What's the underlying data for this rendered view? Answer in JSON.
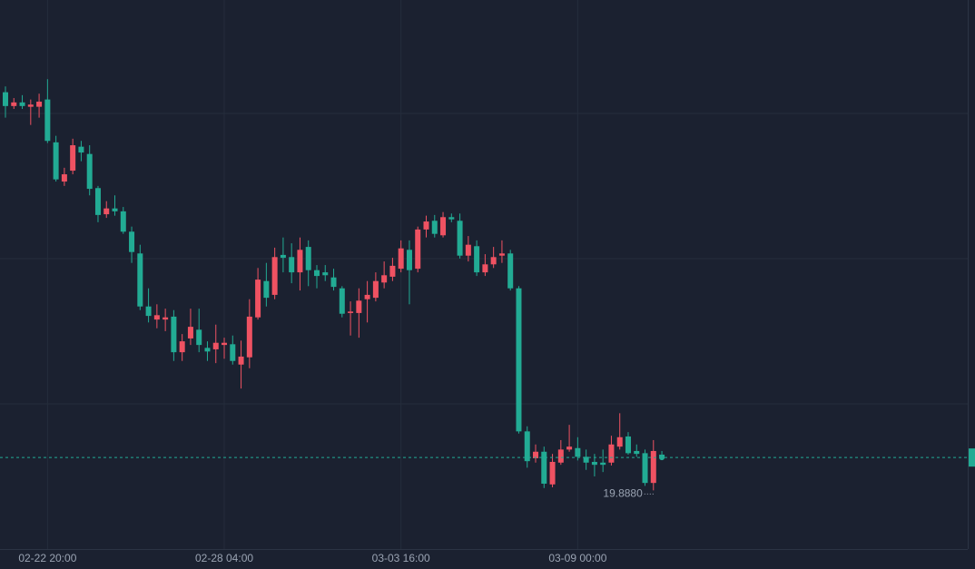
{
  "chart_data": {
    "type": "candlestick",
    "categories": [
      null,
      null,
      null,
      null,
      null,
      "02-22 20:00",
      null,
      null,
      null,
      null,
      null,
      null,
      null,
      null,
      null,
      null,
      null,
      null,
      null,
      null,
      null,
      null,
      null,
      null,
      null,
      null,
      "02-28 04:00",
      null,
      null,
      null,
      null,
      null,
      null,
      null,
      null,
      null,
      null,
      null,
      null,
      null,
      null,
      null,
      null,
      null,
      null,
      null,
      null,
      "03-03 16:00",
      null,
      null,
      null,
      null,
      null,
      null,
      null,
      null,
      null,
      null,
      null,
      null,
      null,
      null,
      null,
      null,
      null,
      null,
      null,
      null,
      "03-09 00:00",
      null,
      null,
      null,
      null,
      null,
      null,
      null,
      null,
      null,
      null
    ],
    "open": [
      25.37,
      25.18,
      25.23,
      25.17,
      25.17,
      25.27,
      24.68,
      24.14,
      24.29,
      24.62,
      24.52,
      24.05,
      23.69,
      23.77,
      23.73,
      23.45,
      23.15,
      22.42,
      22.24,
      22.24,
      22.28,
      21.79,
      21.98,
      22.1,
      21.85,
      21.83,
      21.89,
      21.9,
      21.62,
      21.72,
      22.27,
      22.77,
      22.58,
      23.13,
      23.1,
      22.89,
      23.24,
      22.92,
      22.89,
      22.82,
      22.67,
      22.33,
      22.33,
      22.52,
      22.54,
      22.75,
      22.83,
      22.94,
      23.2,
      22.94,
      23.48,
      23.6,
      23.4,
      23.65,
      23.6,
      23.12,
      23.25,
      22.89,
      23.0,
      23.12,
      23.15,
      22.67,
      20.7,
      20.33,
      20.42,
      19.97,
      20.27,
      20.45,
      20.47,
      20.35,
      20.28,
      20.27,
      20.27,
      20.49,
      20.63,
      20.43,
      20.4,
      19.99,
      20.38
    ],
    "high": [
      25.45,
      25.29,
      25.33,
      25.27,
      25.35,
      25.55,
      24.77,
      24.33,
      24.73,
      24.7,
      24.64,
      24.08,
      23.87,
      23.95,
      23.79,
      23.52,
      23.27,
      22.67,
      22.45,
      22.39,
      22.37,
      22.04,
      22.39,
      22.39,
      21.94,
      22.17,
      21.99,
      22.02,
      21.95,
      22.52,
      22.95,
      23.02,
      23.23,
      23.37,
      23.29,
      23.37,
      23.33,
      22.99,
      22.99,
      22.94,
      22.7,
      22.49,
      22.67,
      22.77,
      22.89,
      23.04,
      23.09,
      23.33,
      23.33,
      23.52,
      23.67,
      23.68,
      23.72,
      23.7,
      23.7,
      23.39,
      23.33,
      23.14,
      23.24,
      23.33,
      23.2,
      22.7,
      20.77,
      20.52,
      20.49,
      20.39,
      20.58,
      20.79,
      20.62,
      20.45,
      20.39,
      20.45,
      20.64,
      20.95,
      20.69,
      20.52,
      20.45,
      20.58,
      20.43
    ],
    "low": [
      25.02,
      25.14,
      25.14,
      24.92,
      25.02,
      24.67,
      24.14,
      24.08,
      24.24,
      24.42,
      23.95,
      23.58,
      23.64,
      23.67,
      23.42,
      23.02,
      22.37,
      22.2,
      22.12,
      22.08,
      21.67,
      21.67,
      21.89,
      21.79,
      21.67,
      21.64,
      21.7,
      21.62,
      21.29,
      21.57,
      22.24,
      22.42,
      22.52,
      22.89,
      22.74,
      22.64,
      22.7,
      22.67,
      22.77,
      22.64,
      22.27,
      22.02,
      21.99,
      22.2,
      22.49,
      22.67,
      22.77,
      22.89,
      22.45,
      22.89,
      23.37,
      23.37,
      23.37,
      23.58,
      23.08,
      23.04,
      22.84,
      22.84,
      22.95,
      23.02,
      22.64,
      20.67,
      20.2,
      20.27,
      19.92,
      19.93,
      20.24,
      20.42,
      20.3,
      20.17,
      20.08,
      20.14,
      20.23,
      20.45,
      20.38,
      20.35,
      19.95,
      19.888,
      20.31
    ],
    "close": [
      25.18,
      25.23,
      25.18,
      25.2,
      25.24,
      24.7,
      24.17,
      24.24,
      24.64,
      24.54,
      24.04,
      23.68,
      23.77,
      23.73,
      23.45,
      23.17,
      22.42,
      22.29,
      22.3,
      22.27,
      21.79,
      21.94,
      22.14,
      21.89,
      21.8,
      21.92,
      21.92,
      21.67,
      21.73,
      22.28,
      22.79,
      22.54,
      23.1,
      23.09,
      22.89,
      23.2,
      22.92,
      22.84,
      22.85,
      22.69,
      22.32,
      22.35,
      22.5,
      22.58,
      22.77,
      22.85,
      22.98,
      23.22,
      22.92,
      23.48,
      23.59,
      23.42,
      23.65,
      23.62,
      23.12,
      23.27,
      22.89,
      23.0,
      23.1,
      23.15,
      22.67,
      20.7,
      20.29,
      20.42,
      19.98,
      20.28,
      20.45,
      20.49,
      20.35,
      20.27,
      20.24,
      20.24,
      20.52,
      20.62,
      20.4,
      20.39,
      19.99,
      20.43,
      20.34
    ],
    "up_color": "#ef5262",
    "down_color": "#22ab94",
    "ylim": [
      19.08,
      26.64
    ],
    "grid": true,
    "annotation": {
      "label": "19.8880",
      "value": 19.888
    }
  }
}
